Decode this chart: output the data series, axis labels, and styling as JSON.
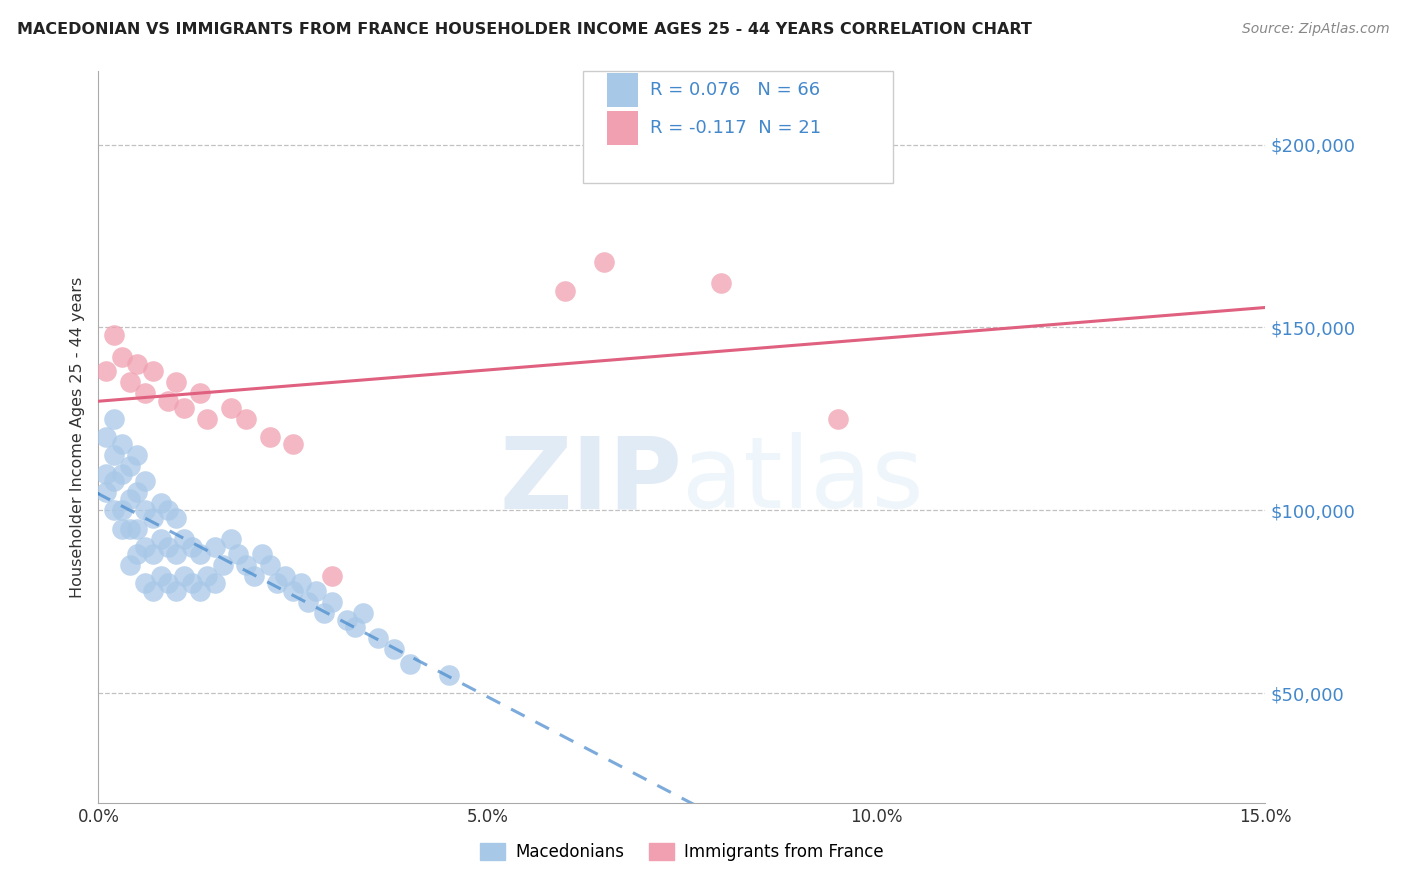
{
  "title": "MACEDONIAN VS IMMIGRANTS FROM FRANCE HOUSEHOLDER INCOME AGES 25 - 44 YEARS CORRELATION CHART",
  "source": "Source: ZipAtlas.com",
  "ylabel": "Householder Income Ages 25 - 44 years",
  "xlabel": "",
  "xlim": [
    0.0,
    0.15
  ],
  "ylim": [
    20000,
    220000
  ],
  "yticks": [
    50000,
    100000,
    150000,
    200000
  ],
  "ytick_labels": [
    "$50,000",
    "$100,000",
    "$150,000",
    "$200,000"
  ],
  "xticks": [
    0.0,
    0.05,
    0.1,
    0.15
  ],
  "xtick_labels": [
    "0.0%",
    "5.0%",
    "10.0%",
    "15.0%"
  ],
  "macedonian_R": 0.076,
  "macedonian_N": 66,
  "france_R": -0.117,
  "france_N": 21,
  "blue_color": "#a8c8e8",
  "pink_color": "#f0a0b0",
  "line_blue": "#4488cc",
  "line_pink": "#e06080",
  "macedonian_x": [
    0.001,
    0.001,
    0.001,
    0.002,
    0.002,
    0.002,
    0.002,
    0.003,
    0.003,
    0.003,
    0.003,
    0.004,
    0.004,
    0.004,
    0.004,
    0.005,
    0.005,
    0.005,
    0.005,
    0.006,
    0.006,
    0.006,
    0.006,
    0.007,
    0.007,
    0.007,
    0.008,
    0.008,
    0.008,
    0.009,
    0.009,
    0.009,
    0.01,
    0.01,
    0.01,
    0.011,
    0.011,
    0.012,
    0.012,
    0.013,
    0.013,
    0.014,
    0.015,
    0.015,
    0.016,
    0.017,
    0.018,
    0.019,
    0.02,
    0.021,
    0.022,
    0.023,
    0.024,
    0.025,
    0.026,
    0.027,
    0.028,
    0.029,
    0.03,
    0.032,
    0.033,
    0.034,
    0.036,
    0.038,
    0.04,
    0.045
  ],
  "macedonian_y": [
    105000,
    110000,
    120000,
    100000,
    108000,
    115000,
    125000,
    95000,
    100000,
    110000,
    118000,
    85000,
    95000,
    103000,
    112000,
    88000,
    95000,
    105000,
    115000,
    80000,
    90000,
    100000,
    108000,
    78000,
    88000,
    98000,
    82000,
    92000,
    102000,
    80000,
    90000,
    100000,
    78000,
    88000,
    98000,
    82000,
    92000,
    80000,
    90000,
    78000,
    88000,
    82000,
    80000,
    90000,
    85000,
    92000,
    88000,
    85000,
    82000,
    88000,
    85000,
    80000,
    82000,
    78000,
    80000,
    75000,
    78000,
    72000,
    75000,
    70000,
    68000,
    72000,
    65000,
    62000,
    58000,
    55000
  ],
  "france_x": [
    0.001,
    0.002,
    0.003,
    0.004,
    0.005,
    0.006,
    0.007,
    0.009,
    0.01,
    0.011,
    0.013,
    0.014,
    0.017,
    0.019,
    0.022,
    0.025,
    0.03,
    0.06,
    0.065,
    0.08,
    0.095
  ],
  "france_y": [
    138000,
    148000,
    142000,
    135000,
    140000,
    132000,
    138000,
    130000,
    135000,
    128000,
    132000,
    125000,
    128000,
    125000,
    120000,
    118000,
    82000,
    160000,
    168000,
    162000,
    125000
  ],
  "background_color": "#ffffff",
  "grid_color": "#bbbbbb",
  "watermark_zip": "ZIP",
  "watermark_atlas": "atlas"
}
